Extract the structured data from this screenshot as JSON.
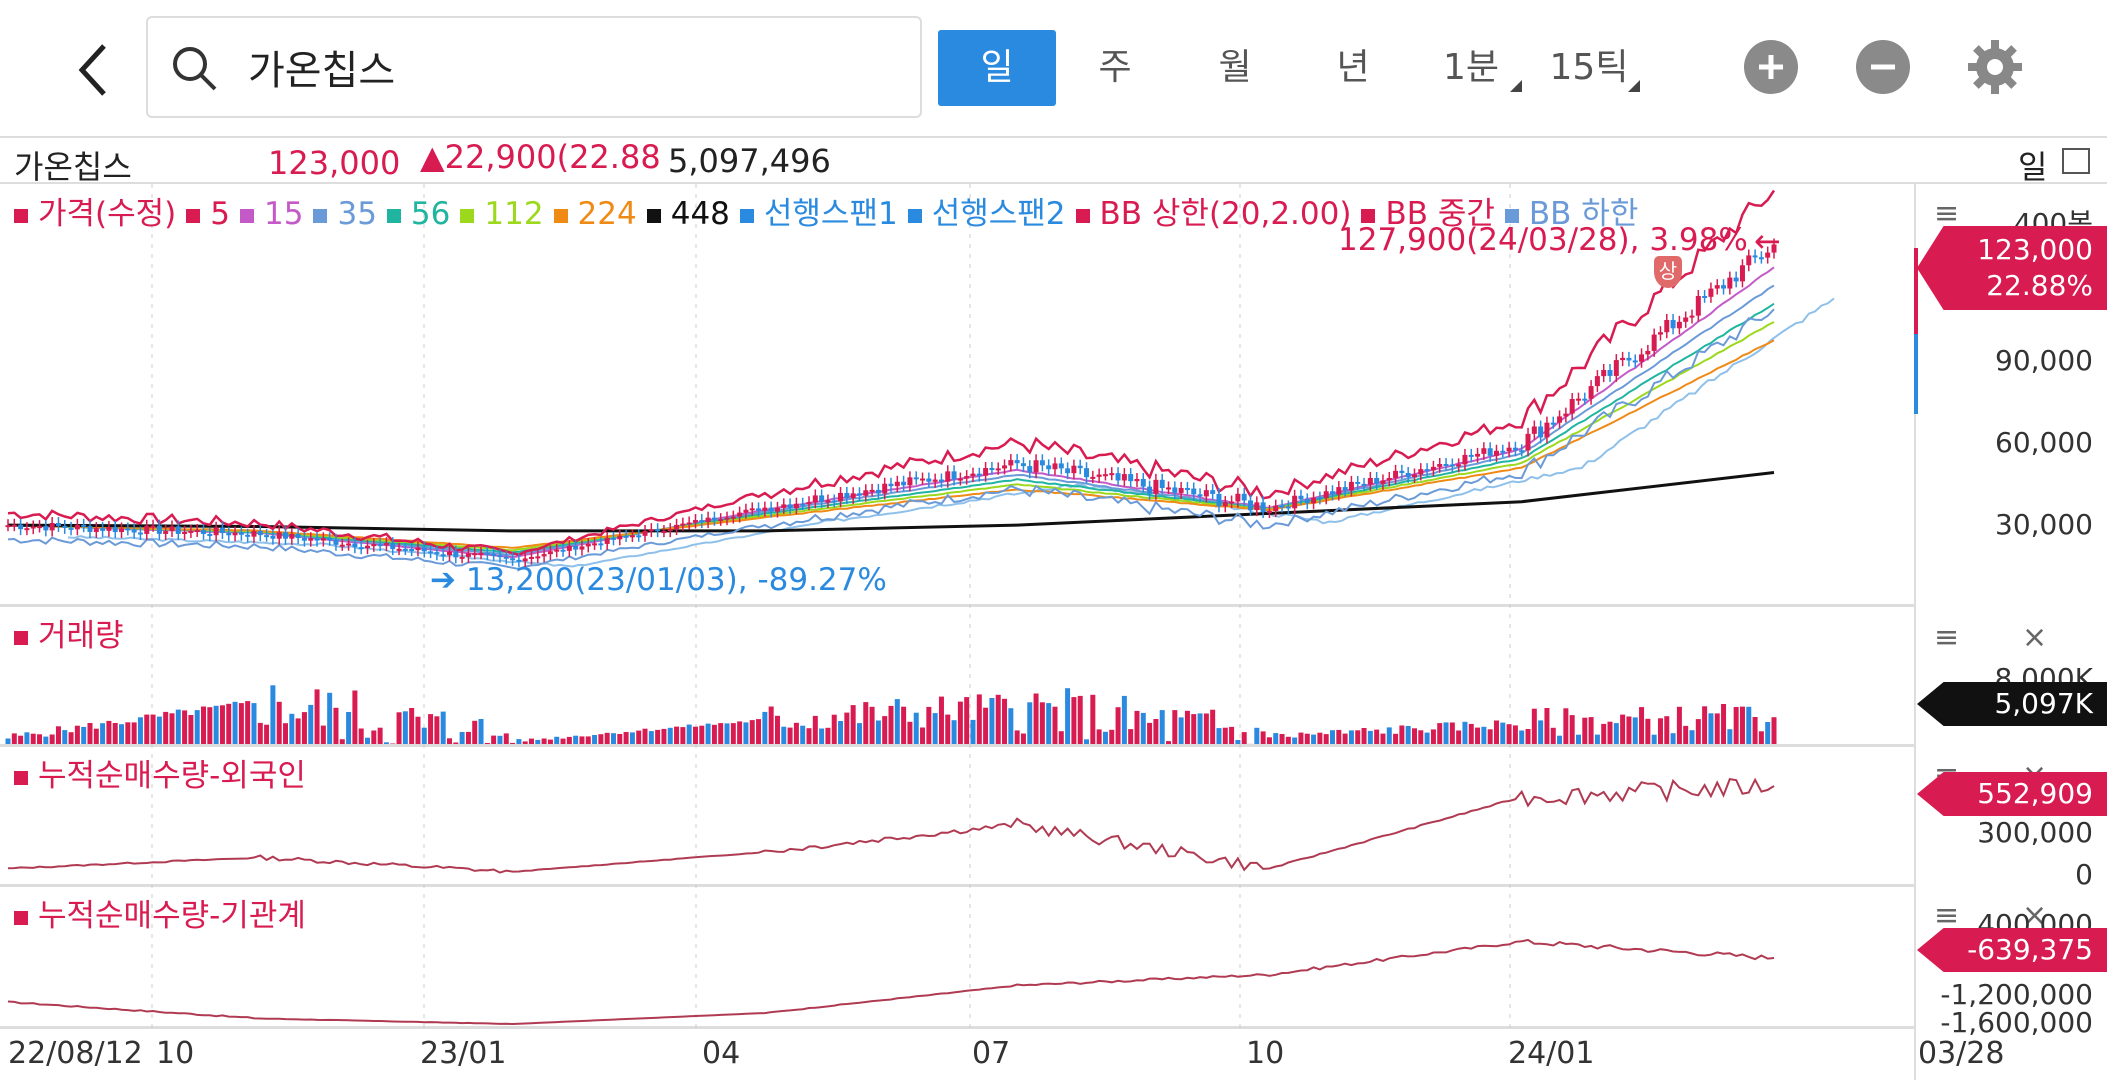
{
  "header": {
    "search_value": "가온칩스",
    "tabs": [
      {
        "label": "일",
        "active": true
      },
      {
        "label": "주",
        "active": false
      },
      {
        "label": "월",
        "active": false
      },
      {
        "label": "년",
        "active": false
      },
      {
        "label": "1분",
        "active": false,
        "dropdown": true
      },
      {
        "label": "15틱",
        "active": false,
        "dropdown": true
      }
    ],
    "icons": {
      "back": "back-arrow-icon",
      "search": "search-icon",
      "zoom_in": "plus-circle-icon",
      "zoom_out": "minus-circle-icon",
      "settings": "gear-icon"
    }
  },
  "info": {
    "name": "가온칩스",
    "price": "123,000",
    "change": "▲22,900(22.88",
    "volume": "5,097,496",
    "period": "일"
  },
  "price_pane": {
    "legend": [
      {
        "label": "가격(수정)",
        "color": "#d81b50"
      },
      {
        "label": "5",
        "color": "#d81b50"
      },
      {
        "label": "15",
        "color": "#c45ac8"
      },
      {
        "label": "35",
        "color": "#6a9ad8"
      },
      {
        "label": "56",
        "color": "#1fb5a0"
      },
      {
        "label": "112",
        "color": "#9cd81b"
      },
      {
        "label": "224",
        "color": "#f08a16"
      },
      {
        "label": "448",
        "color": "#111111"
      },
      {
        "label": "선행스팬1",
        "color": "#2a8ae0"
      },
      {
        "label": "선행스팬2",
        "color": "#2a8ae0"
      },
      {
        "label": "BB 상한(20,2.00)",
        "color": "#d81b50"
      },
      {
        "label": "BB 중간",
        "color": "#d81b50"
      },
      {
        "label": "BB 하한",
        "color": "#6a9ad8"
      }
    ],
    "high_annotation": "127,900(24/03/28), 3.98%",
    "low_annotation": "13,200(23/01/03), -89.27%",
    "limit_up_badge": "상",
    "y_axis": [
      "400봉",
      "90,000",
      "60,000",
      "30,000"
    ],
    "flag_price": "123,000",
    "flag_pct": "22.88%"
  },
  "volume_pane": {
    "title": "거래량",
    "y_axis": [
      "8,000K"
    ],
    "flag": "5,097K"
  },
  "foreign_pane": {
    "title": "누적순매수량-외국인",
    "y_axis": [
      "300,000",
      "0"
    ],
    "flag": "552,909"
  },
  "inst_pane": {
    "title": "누적순매수량-기관계",
    "y_axis": [
      "400,000",
      "-1,200,000",
      "-1,600,000"
    ],
    "flag": "-639,375"
  },
  "x_axis": [
    "22/08/12",
    "10",
    "23/01",
    "04",
    "07",
    "10",
    "24/01",
    "03/28"
  ],
  "colors": {
    "accent": "#2a8ae0",
    "up": "#d81b50",
    "down": "#2a8ae0"
  },
  "chart_data": {
    "type": "line",
    "title": "가온칩스",
    "x": [
      "22/08",
      "22/10",
      "23/01",
      "23/04",
      "23/07",
      "23/10",
      "24/01",
      "24/03/28"
    ],
    "series": [
      {
        "name": "가격(수정)",
        "values": [
          27000,
          24000,
          15000,
          33000,
          48000,
          33000,
          55000,
          123000
        ]
      },
      {
        "name": "448",
        "values": [
          27000,
          26500,
          25000,
          25000,
          27000,
          31000,
          35000,
          45000
        ]
      }
    ],
    "volume_series": [
      1200,
      8000,
      500,
      4600,
      7000,
      1400,
      4000,
      5097
    ],
    "ylim": [
      0,
      130000
    ]
  }
}
